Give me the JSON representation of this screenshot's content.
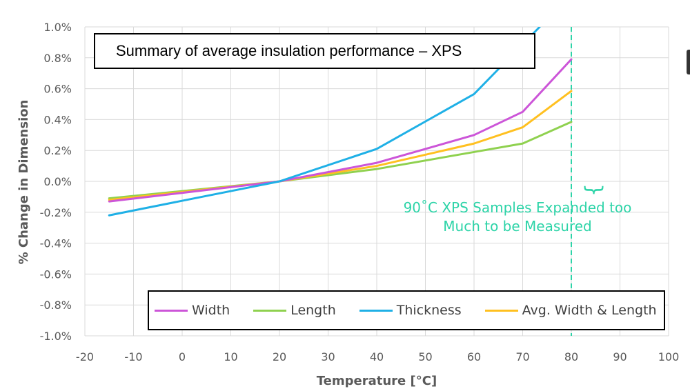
{
  "chart_data": {
    "type": "line",
    "title": "Summary of average insulation performance – XPS",
    "xlabel": "Temperature [°C]",
    "ylabel": "% Change in Dimension",
    "xlim": [
      -20,
      100
    ],
    "ylim": [
      -1.0,
      1.0
    ],
    "xticks": [
      -20,
      -10,
      0,
      10,
      20,
      30,
      40,
      50,
      60,
      70,
      80,
      90,
      100
    ],
    "yticks": [
      -1.0,
      -0.8,
      -0.6,
      -0.4,
      -0.2,
      0.0,
      0.2,
      0.4,
      0.6,
      0.8,
      1.0
    ],
    "xtick_labels": [
      "-20",
      "-10",
      "0",
      "10",
      "20",
      "30",
      "40",
      "50",
      "60",
      "70",
      "80",
      "90",
      "100"
    ],
    "ytick_labels": [
      "-1.0%",
      "-0.8%",
      "-0.6%",
      "-0.4%",
      "-0.2%",
      "0.0%",
      "0.2%",
      "0.4%",
      "0.6%",
      "0.8%",
      "1.0%"
    ],
    "grid": true,
    "legend_position": "bottom",
    "series": [
      {
        "name": "Width",
        "color": "#cc55d8",
        "x": [
          -15,
          20,
          40,
          60,
          70,
          80
        ],
        "values": [
          -0.13,
          0.0,
          0.12,
          0.3,
          0.45,
          0.79
        ]
      },
      {
        "name": "Length",
        "color": "#8fd14f",
        "x": [
          -15,
          20,
          40,
          60,
          70,
          80
        ],
        "values": [
          -0.11,
          0.0,
          0.08,
          0.19,
          0.245,
          0.385
        ]
      },
      {
        "name": "Thickness",
        "color": "#1fb0e6",
        "x": [
          -15,
          20,
          40,
          60,
          73.5
        ],
        "values": [
          -0.22,
          0.0,
          0.21,
          0.565,
          1.0
        ]
      },
      {
        "name": "Avg. Width & Length",
        "color": "#ffc020",
        "x": [
          -15,
          20,
          40,
          60,
          70,
          80
        ],
        "values": [
          -0.12,
          0.0,
          0.1,
          0.245,
          0.35,
          0.585
        ]
      }
    ],
    "vline": {
      "x": 80,
      "color": "#2dd4a8"
    },
    "annotation": {
      "line1": "90˚C XPS Samples Expanded too",
      "line2": "Much to be Measured"
    }
  }
}
